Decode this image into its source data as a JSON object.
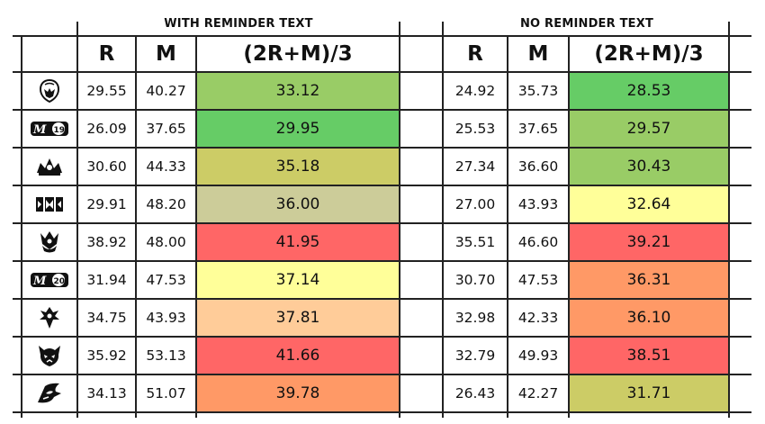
{
  "groups": {
    "left": "WITH REMINDER TEXT",
    "right": "NO REMINDER TEXT"
  },
  "headers": {
    "r": "R",
    "m": "M",
    "formula": "(2R+M)/3"
  },
  "set_icons": [
    "helmet-icon",
    "m19-icon",
    "crown-icon",
    "war-of-spark-icon",
    "throne-icon",
    "m20-icon",
    "ikoria-icon",
    "skull-icon",
    "kaldheim-icon"
  ],
  "rows": [
    {
      "l_r": "29.55",
      "l_m": "40.27",
      "l_avg": "33.12",
      "l_color": "#99cc66",
      "r_r": "24.92",
      "r_m": "35.73",
      "r_avg": "28.53",
      "r_color": "#66cc66"
    },
    {
      "l_r": "26.09",
      "l_m": "37.65",
      "l_avg": "29.95",
      "l_color": "#66cc66",
      "r_r": "25.53",
      "r_m": "37.65",
      "r_avg": "29.57",
      "r_color": "#99cc66"
    },
    {
      "l_r": "30.60",
      "l_m": "44.33",
      "l_avg": "35.18",
      "l_color": "#cccc66",
      "r_r": "27.34",
      "r_m": "36.60",
      "r_avg": "30.43",
      "r_color": "#99cc66"
    },
    {
      "l_r": "29.91",
      "l_m": "48.20",
      "l_avg": "36.00",
      "l_color": "#cccc99",
      "r_r": "27.00",
      "r_m": "43.93",
      "r_avg": "32.64",
      "r_color": "#ffff99"
    },
    {
      "l_r": "38.92",
      "l_m": "48.00",
      "l_avg": "41.95",
      "l_color": "#ff6666",
      "r_r": "35.51",
      "r_m": "46.60",
      "r_avg": "39.21",
      "r_color": "#ff6666"
    },
    {
      "l_r": "31.94",
      "l_m": "47.53",
      "l_avg": "37.14",
      "l_color": "#ffff99",
      "r_r": "30.70",
      "r_m": "47.53",
      "r_avg": "36.31",
      "r_color": "#ff9966"
    },
    {
      "l_r": "34.75",
      "l_m": "43.93",
      "l_avg": "37.81",
      "l_color": "#ffcc99",
      "r_r": "32.98",
      "r_m": "42.33",
      "r_avg": "36.10",
      "r_color": "#ff9966"
    },
    {
      "l_r": "35.92",
      "l_m": "53.13",
      "l_avg": "41.66",
      "l_color": "#ff6666",
      "r_r": "32.79",
      "r_m": "49.93",
      "r_avg": "38.51",
      "r_color": "#ff6666"
    },
    {
      "l_r": "34.13",
      "l_m": "51.07",
      "l_avg": "39.78",
      "l_color": "#ff9966",
      "r_r": "26.43",
      "r_m": "42.27",
      "r_avg": "31.71",
      "r_color": "#cccc66"
    }
  ]
}
